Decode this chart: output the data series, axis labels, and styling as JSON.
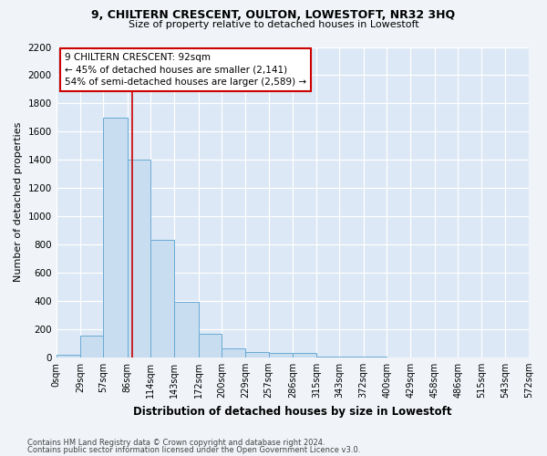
{
  "title": "9, CHILTERN CRESCENT, OULTON, LOWESTOFT, NR32 3HQ",
  "subtitle": "Size of property relative to detached houses in Lowestoft",
  "xlabel": "Distribution of detached houses by size in Lowestoft",
  "ylabel": "Number of detached properties",
  "bar_color": "#c8ddf0",
  "bar_edge_color": "#6aaad4",
  "background_color": "#dce8f5",
  "grid_color": "#ffffff",
  "annotation_line1": "9 CHILTERN CRESCENT: 92sqm",
  "annotation_line2": "← 45% of detached houses are smaller (2,141)",
  "annotation_line3": "54% of semi-detached houses are larger (2,589) →",
  "property_line_x": 92,
  "property_line_color": "#cc0000",
  "annotation_box_facecolor": "#ffffff",
  "annotation_box_edgecolor": "#cc0000",
  "bins": [
    0,
    29,
    57,
    86,
    114,
    143,
    172,
    200,
    229,
    257,
    286,
    315,
    343,
    372,
    400,
    429,
    458,
    486,
    515,
    543,
    572
  ],
  "bin_labels": [
    "0sqm",
    "29sqm",
    "57sqm",
    "86sqm",
    "114sqm",
    "143sqm",
    "172sqm",
    "200sqm",
    "229sqm",
    "257sqm",
    "286sqm",
    "315sqm",
    "343sqm",
    "372sqm",
    "400sqm",
    "429sqm",
    "458sqm",
    "486sqm",
    "515sqm",
    "543sqm",
    "572sqm"
  ],
  "bar_heights": [
    20,
    155,
    1700,
    1400,
    830,
    390,
    165,
    65,
    40,
    30,
    30,
    5,
    5,
    5,
    0,
    0,
    0,
    0,
    0,
    0
  ],
  "ylim": [
    0,
    2200
  ],
  "yticks": [
    0,
    200,
    400,
    600,
    800,
    1000,
    1200,
    1400,
    1600,
    1800,
    2000,
    2200
  ],
  "fig_facecolor": "#f0f4f8",
  "footer_line1": "Contains HM Land Registry data © Crown copyright and database right 2024.",
  "footer_line2": "Contains public sector information licensed under the Open Government Licence v3.0.",
  "figsize": [
    6.0,
    5.0
  ],
  "dpi": 100
}
